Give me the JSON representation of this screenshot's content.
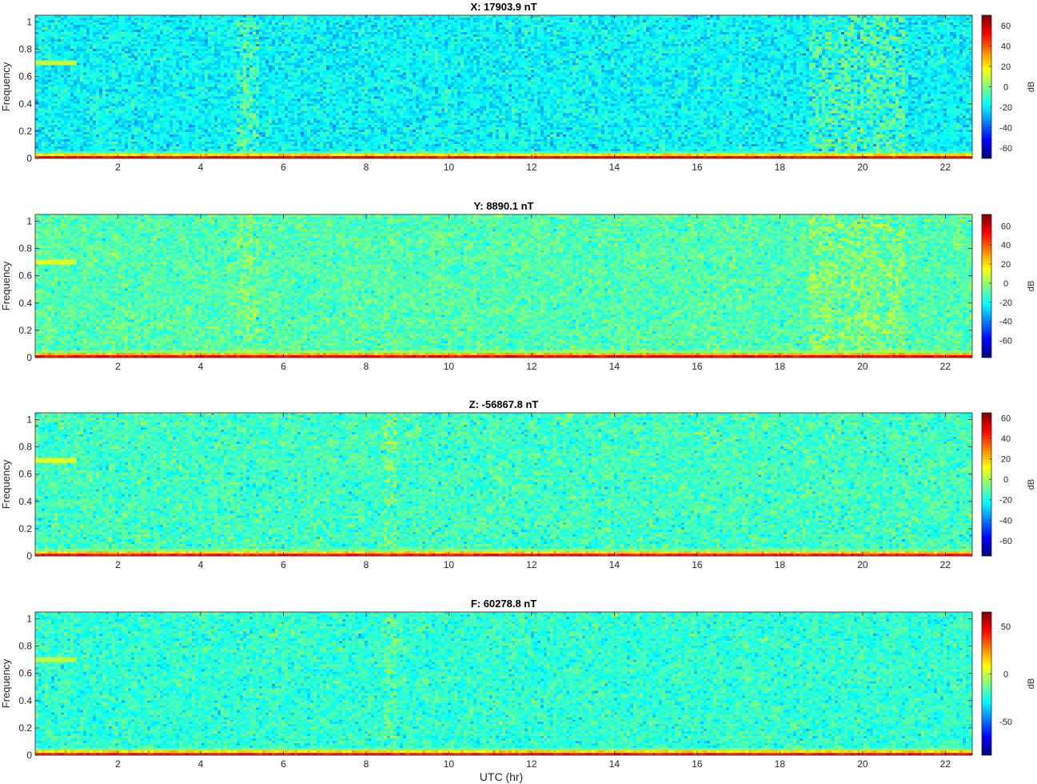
{
  "figure": {
    "xlabel": "UTC (hr)"
  },
  "chart_data": [
    {
      "type": "heatmap",
      "title": "X: 17903.9 nT",
      "ylabel": "Frequency",
      "xlim": [
        0,
        22.65
      ],
      "ylim": [
        0,
        1.05
      ],
      "xticks": [
        2,
        4,
        6,
        8,
        10,
        12,
        14,
        16,
        18,
        20,
        22
      ],
      "yticks": [
        0,
        0.2,
        0.4,
        0.6,
        0.8,
        1
      ],
      "colorbar": {
        "label": "dB",
        "range": [
          -70,
          70
        ],
        "ticks": [
          -60,
          -40,
          -20,
          0,
          20,
          40,
          60
        ],
        "colormap": "jet"
      },
      "background_level_db": -18,
      "low_freq_band_db": 65,
      "features": [
        {
          "type": "horizontal_line",
          "y": 0.7,
          "x_range": [
            0,
            1.0
          ],
          "db": 10
        },
        {
          "type": "vertical_band",
          "x_range": [
            4.9,
            5.4
          ],
          "db": -2
        },
        {
          "type": "vertical_band",
          "x_range": [
            18.7,
            21.0
          ],
          "db": 0
        }
      ]
    },
    {
      "type": "heatmap",
      "title": "Y: 8890.1 nT",
      "ylabel": "Frequency",
      "xlim": [
        0,
        22.65
      ],
      "ylim": [
        0,
        1.05
      ],
      "xticks": [
        2,
        4,
        6,
        8,
        10,
        12,
        14,
        16,
        18,
        20,
        22
      ],
      "yticks": [
        0,
        0.2,
        0.4,
        0.6,
        0.8,
        1
      ],
      "colorbar": {
        "label": "dB",
        "range": [
          -78,
          72
        ],
        "ticks": [
          -60,
          -40,
          -20,
          0,
          20,
          40,
          60
        ],
        "colormap": "jet"
      },
      "background_level_db": -10,
      "low_freq_band_db": 65,
      "features": [
        {
          "type": "horizontal_line",
          "y": 0.7,
          "x_range": [
            0,
            1.0
          ],
          "db": 12
        },
        {
          "type": "vertical_band",
          "x_range": [
            4.9,
            5.4
          ],
          "db": 2
        },
        {
          "type": "vertical_band",
          "x_range": [
            18.7,
            21.0
          ],
          "db": 4
        }
      ]
    },
    {
      "type": "heatmap",
      "title": "Z: -56867.8 nT",
      "ylabel": "Frequency",
      "xlim": [
        0,
        22.65
      ],
      "ylim": [
        0,
        1.05
      ],
      "xticks": [
        2,
        4,
        6,
        8,
        10,
        12,
        14,
        16,
        18,
        20,
        22
      ],
      "yticks": [
        0,
        0.2,
        0.4,
        0.6,
        0.8,
        1
      ],
      "colorbar": {
        "label": "dB",
        "range": [
          -75,
          65
        ],
        "ticks": [
          -60,
          -40,
          -20,
          0,
          20,
          40,
          60
        ],
        "colormap": "jet"
      },
      "background_level_db": -14,
      "low_freq_band_db": 55,
      "features": [
        {
          "type": "horizontal_line",
          "y": 0.7,
          "x_range": [
            0,
            1.0
          ],
          "db": 10
        },
        {
          "type": "vertical_band",
          "x_range": [
            8.4,
            8.7
          ],
          "db": 0
        }
      ]
    },
    {
      "type": "heatmap",
      "title": "F: 60278.8 nT",
      "ylabel": "Frequency",
      "xlim": [
        0,
        22.65
      ],
      "ylim": [
        0,
        1.05
      ],
      "xticks": [
        2,
        4,
        6,
        8,
        10,
        12,
        14,
        16,
        18,
        20,
        22
      ],
      "yticks": [
        0,
        0.2,
        0.4,
        0.6,
        0.8,
        1
      ],
      "colorbar": {
        "label": "dB",
        "range": [
          -85,
          65
        ],
        "ticks": [
          -50,
          0,
          50
        ],
        "colormap": "jet"
      },
      "background_level_db": -22,
      "low_freq_band_db": 55,
      "features": [
        {
          "type": "horizontal_line",
          "y": 0.7,
          "x_range": [
            0,
            1.0
          ],
          "db": -2
        },
        {
          "type": "vertical_band",
          "x_range": [
            8.4,
            8.7
          ],
          "db": -10
        }
      ]
    }
  ]
}
